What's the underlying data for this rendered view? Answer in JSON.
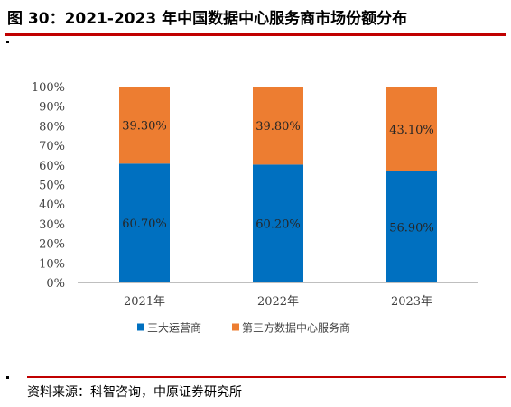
{
  "header": {
    "title": "图 30：2021-2023 年中国数据中心服务商市场份额分布"
  },
  "footer": {
    "source": "资料来源：科智咨询，中原证券研究所"
  },
  "colors": {
    "accent_rule": "#c00000",
    "series_1": "#0070c0",
    "series_2": "#ed7d31"
  },
  "chart_data": {
    "type": "bar",
    "stacked": true,
    "categories": [
      "2021年",
      "2022年",
      "2023年"
    ],
    "series": [
      {
        "name": "三大运营商",
        "values": [
          60.7,
          60.2,
          56.9
        ],
        "labels": [
          "60.70%",
          "60.20%",
          "56.90%"
        ],
        "color": "#0070c0"
      },
      {
        "name": "第三方数据中心服务商",
        "values": [
          39.3,
          39.8,
          43.1
        ],
        "labels": [
          "39.30%",
          "39.80%",
          "43.10%"
        ],
        "color": "#ed7d31"
      }
    ],
    "ylim": [
      0,
      100
    ],
    "yticks": [
      "0%",
      "10%",
      "20%",
      "30%",
      "40%",
      "50%",
      "60%",
      "70%",
      "80%",
      "90%",
      "100%"
    ],
    "xlabel": "",
    "ylabel": "",
    "grid": false,
    "legend": "bottom"
  }
}
